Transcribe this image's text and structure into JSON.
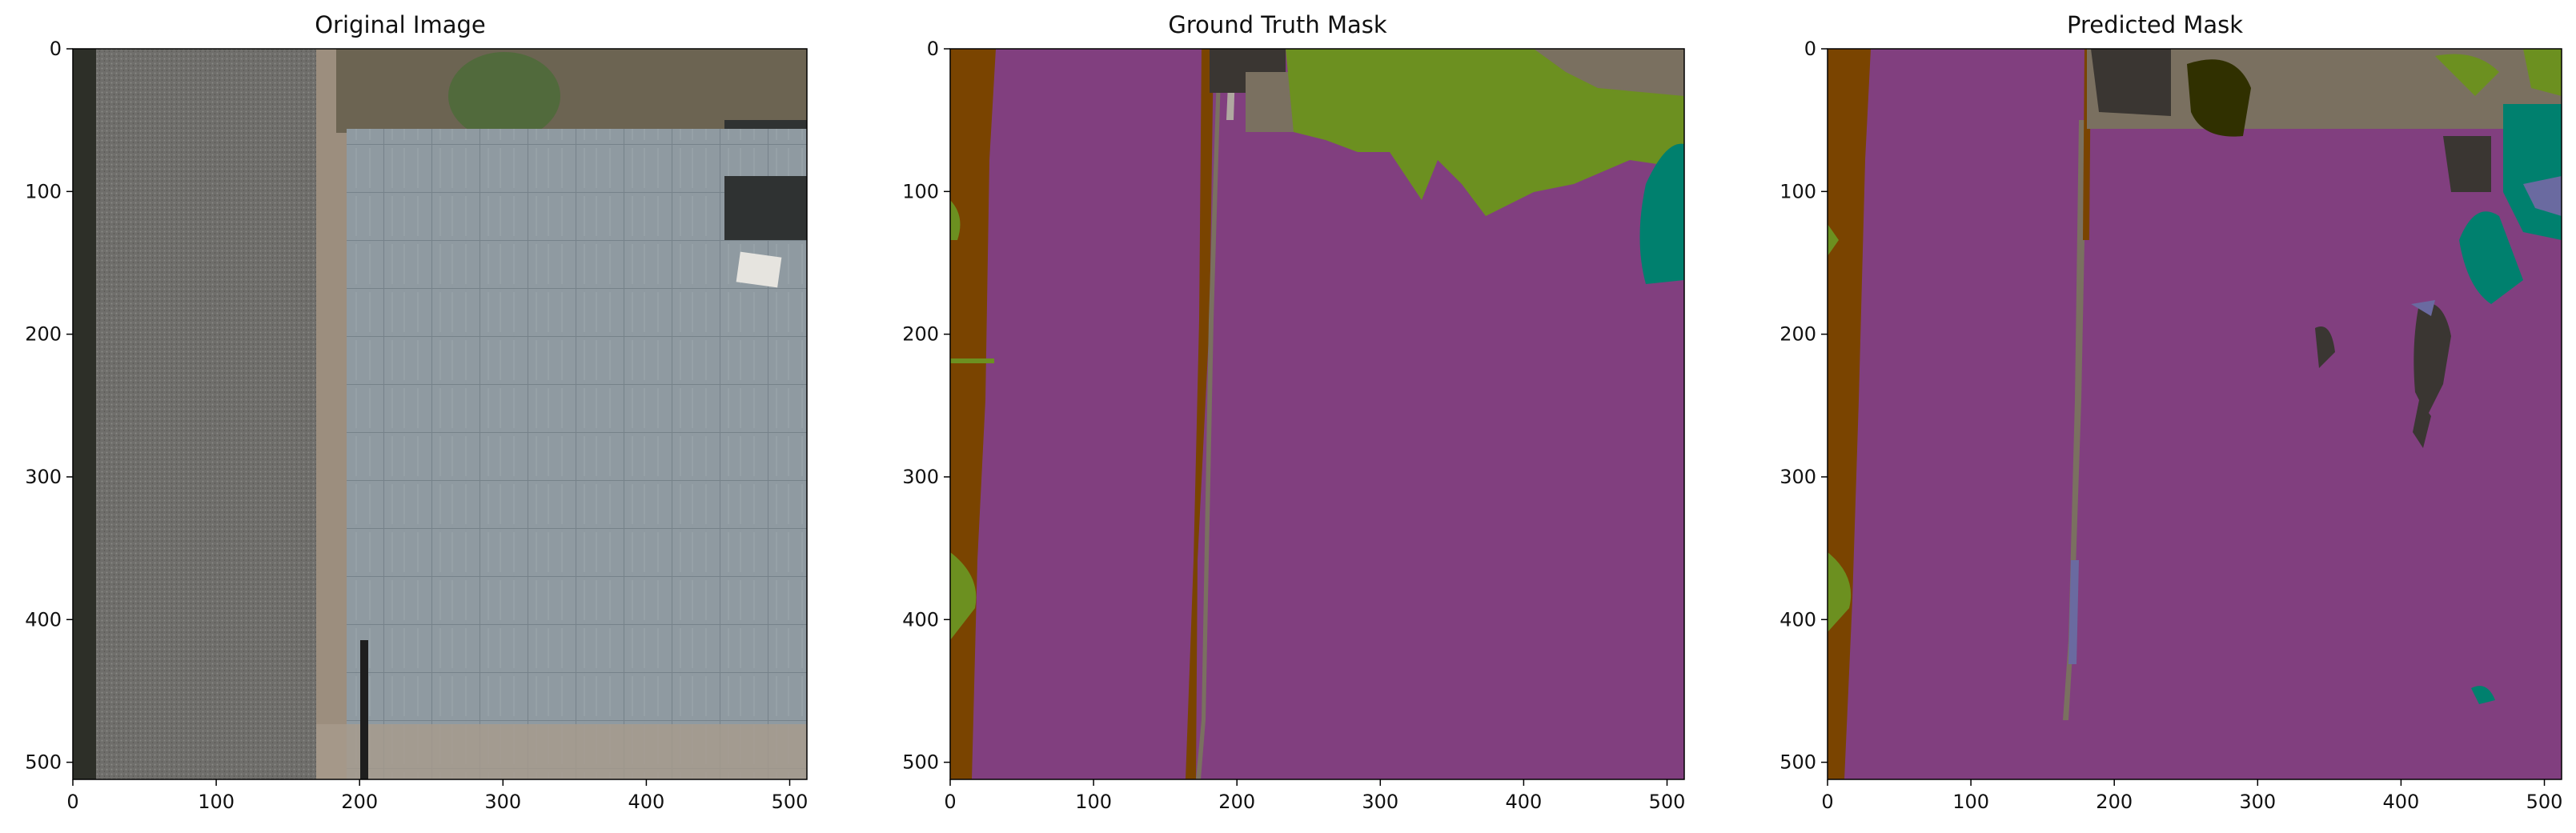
{
  "panels": [
    {
      "id": "original",
      "title": "Original Image",
      "xticks": [
        "0",
        "100",
        "200",
        "300",
        "400",
        "500"
      ],
      "yticks": [
        "0",
        "100",
        "200",
        "300",
        "400",
        "500"
      ]
    },
    {
      "id": "ground-truth",
      "title": "Ground Truth Mask",
      "xticks": [
        "0",
        "100",
        "200",
        "300",
        "400",
        "500"
      ],
      "yticks": [
        "0",
        "100",
        "200",
        "300",
        "400",
        "500"
      ]
    },
    {
      "id": "predicted",
      "title": "Predicted Mask",
      "xticks": [
        "0",
        "100",
        "200",
        "300",
        "400",
        "500"
      ],
      "yticks": [
        "0",
        "100",
        "200",
        "300",
        "400",
        "500"
      ]
    }
  ],
  "axis": {
    "xlim": [
      0,
      512
    ],
    "ylim": [
      512,
      0
    ]
  },
  "colors": {
    "background_class": "#813F7F",
    "soil_brown": "#7A4400",
    "vegetation_green": "#6C9020",
    "gravel_gray": "#7A7060",
    "teal_object": "#00806E",
    "dark_object": "#3A3632",
    "dark_olive": "#303000",
    "slate_blue": "#6A6AA0",
    "light_gray": "#B0A8A0",
    "pavement_gray": "#8A959C",
    "gravel_photo": "#6E6E6A"
  }
}
